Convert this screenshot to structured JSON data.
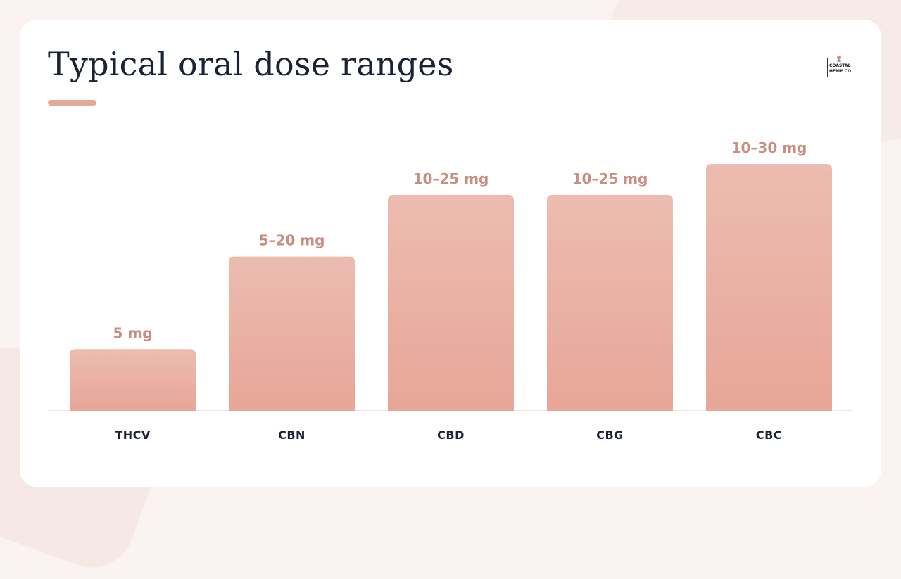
{
  "slide": {
    "title": "Typical oral dose ranges",
    "logo_line1": "COASTAL",
    "logo_line2": "HEMP CO."
  },
  "colors": {
    "bar_top": "#ecbcb1",
    "bar_bottom": "#e7a697",
    "label": "#c98e80",
    "title": "#1b2238",
    "accent": "#e5a99b"
  },
  "chart_data": {
    "type": "bar",
    "title": "Typical oral dose ranges",
    "xlabel": "",
    "ylabel": "",
    "grid": false,
    "categories": [
      "THCV",
      "CBN",
      "CBD",
      "CBG",
      "CBC"
    ],
    "values_low": [
      5,
      5,
      10,
      10,
      10
    ],
    "values_high": [
      5,
      20,
      25,
      25,
      30
    ],
    "labels": [
      "5 mg",
      "5–20 mg",
      "10–25 mg",
      "10–25 mg",
      "10–30 mg"
    ],
    "bar_height_relative": [
      0.25,
      0.625,
      0.875,
      0.875,
      1.0
    ]
  }
}
